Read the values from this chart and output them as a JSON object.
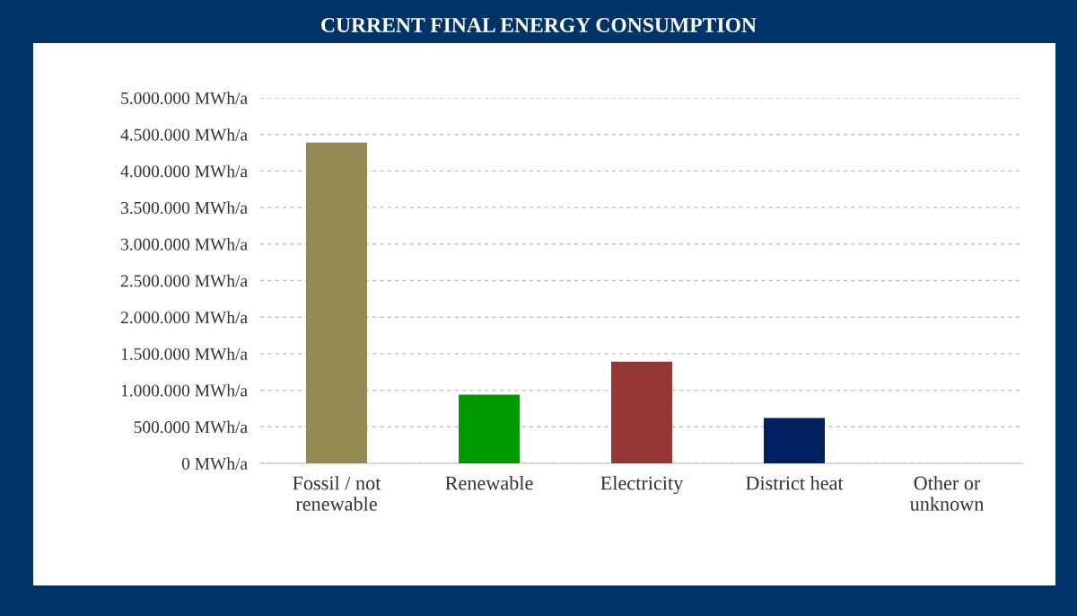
{
  "chart_data": {
    "type": "bar",
    "title": "CURRENT FINAL ENERGY CONSUMPTION",
    "categories": [
      "Fossil / not\nrenewable",
      "Renewable",
      "Electricity",
      "District heat",
      "Other or\nunknown"
    ],
    "values": [
      4390000,
      940000,
      1390000,
      620000,
      0
    ],
    "colors": [
      "#948a54",
      "#009900",
      "#943634",
      "#002060",
      "#808080"
    ],
    "ylim": [
      0,
      5000000
    ],
    "yticks": [
      {
        "value": 0,
        "label": "0 MWh/a"
      },
      {
        "value": 500000,
        "label": "500.000 MWh/a"
      },
      {
        "value": 1000000,
        "label": "1.000.000 MWh/a"
      },
      {
        "value": 1500000,
        "label": "1.500.000 MWh/a"
      },
      {
        "value": 2000000,
        "label": "2.000.000 MWh/a"
      },
      {
        "value": 2500000,
        "label": "2.500.000 MWh/a"
      },
      {
        "value": 3000000,
        "label": "3.000.000 MWh/a"
      },
      {
        "value": 3500000,
        "label": "3.500.000 MWh/a"
      },
      {
        "value": 4000000,
        "label": "4.000.000 MWh/a"
      },
      {
        "value": 4500000,
        "label": "4.500.000 MWh/a"
      },
      {
        "value": 5000000,
        "label": "5.000.000 MWh/a"
      }
    ],
    "grid": "y"
  }
}
